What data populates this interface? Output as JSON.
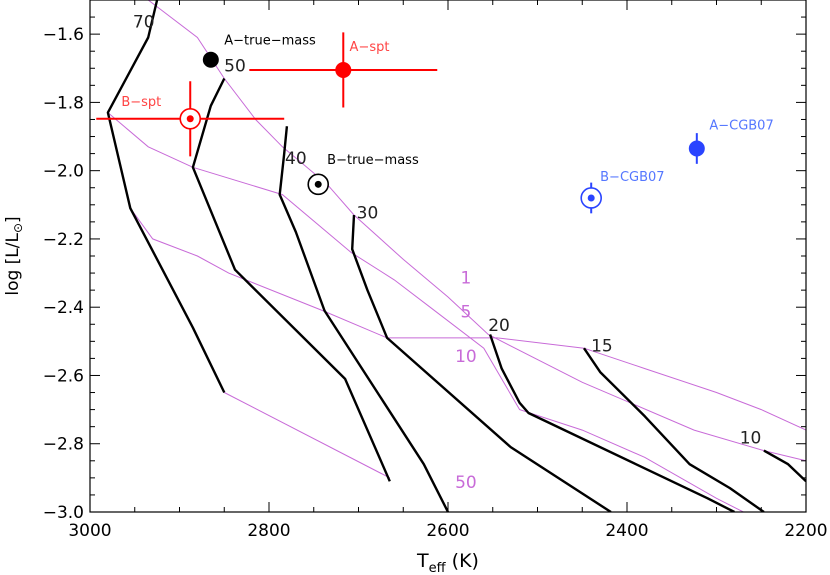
{
  "chart_data": {
    "type": "line",
    "xlabel": "T",
    "xlabel_sub": "eff",
    "xlabel_unit": "(K)",
    "ylabel": "log [L/L",
    "ylabel_sun": "⊙",
    "ylabel_close": "]",
    "xlim": [
      3000,
      2200
    ],
    "ylim": [
      -3.0,
      -1.5
    ],
    "x_ticks": [
      3000,
      2800,
      2600,
      2400,
      2200
    ],
    "x_tick_labels": [
      "3000",
      "2800",
      "2600",
      "2400",
      "2200"
    ],
    "y_ticks": [
      -1.6,
      -1.8,
      -2.0,
      -2.2,
      -2.4,
      -2.6,
      -2.8,
      -3.0
    ],
    "y_tick_labels": [
      "−1.6",
      "−1.8",
      "−2.0",
      "−2.2",
      "−2.4",
      "−2.6",
      "−2.8",
      "−3.0"
    ],
    "colors": {
      "track": "#000000",
      "isochrone": "#c86bd8",
      "red": "#ff0000",
      "blue": "#2a44ff",
      "label_red": "#ff4444",
      "label_blue": "#5577ff"
    },
    "mass_tracks": [
      {
        "name": "70",
        "points": [
          [
            2925,
            -1.5
          ],
          [
            2935,
            -1.61
          ],
          [
            2980,
            -1.83
          ],
          [
            2955,
            -2.11
          ],
          [
            2885,
            -2.46
          ],
          [
            2850,
            -2.65
          ]
        ],
        "label": "70",
        "label_at": [
          2940,
          -1.58
        ]
      },
      {
        "name": "50",
        "points": [
          [
            2850,
            -1.73
          ],
          [
            2865,
            -1.81
          ],
          [
            2885,
            -1.99
          ],
          [
            2838,
            -2.29
          ],
          [
            2715,
            -2.61
          ],
          [
            2665,
            -2.91
          ]
        ],
        "label": "50",
        "label_at": [
          2838,
          -1.71
        ]
      },
      {
        "name": "40",
        "points": [
          [
            2780,
            -1.87
          ],
          [
            2783,
            -1.95
          ],
          [
            2788,
            -2.07
          ],
          [
            2770,
            -2.18
          ],
          [
            2738,
            -2.41
          ],
          [
            2627,
            -2.86
          ],
          [
            2600,
            -3.0
          ]
        ],
        "label": "40",
        "label_at": [
          2770,
          -1.98
        ]
      },
      {
        "name": "30",
        "points": [
          [
            2705,
            -2.13
          ],
          [
            2707,
            -2.23
          ],
          [
            2690,
            -2.35
          ],
          [
            2668,
            -2.49
          ],
          [
            2530,
            -2.81
          ],
          [
            2418,
            -3.0
          ]
        ],
        "label": "30",
        "label_at": [
          2690,
          -2.14
        ]
      },
      {
        "name": "20",
        "points": [
          [
            2553,
            -2.48
          ],
          [
            2540,
            -2.58
          ],
          [
            2520,
            -2.68
          ],
          [
            2510,
            -2.71
          ],
          [
            2390,
            -2.86
          ],
          [
            2310,
            -2.96
          ],
          [
            2280,
            -3.0
          ]
        ],
        "label": "20",
        "label_at": [
          2543,
          -2.47
        ]
      },
      {
        "name": "15",
        "points": [
          [
            2448,
            -2.52
          ],
          [
            2430,
            -2.59
          ],
          [
            2380,
            -2.72
          ],
          [
            2330,
            -2.86
          ],
          [
            2285,
            -2.93
          ],
          [
            2247,
            -3.0
          ]
        ],
        "label": "15",
        "label_at": [
          2428,
          -2.53
        ]
      },
      {
        "name": "10",
        "points": [
          [
            2247,
            -2.82
          ],
          [
            2220,
            -2.86
          ],
          [
            2200,
            -2.91
          ]
        ],
        "label": "10",
        "label_at": [
          2262,
          -2.8
        ]
      }
    ],
    "isochrones": [
      {
        "name": "1",
        "points": [
          [
            2935,
            -1.5
          ],
          [
            2880,
            -1.61
          ],
          [
            2850,
            -1.73
          ],
          [
            2815,
            -1.85
          ],
          [
            2785,
            -1.93
          ],
          [
            2735,
            -2.04
          ],
          [
            2705,
            -2.13
          ],
          [
            2650,
            -2.26
          ],
          [
            2600,
            -2.37
          ],
          [
            2555,
            -2.48
          ],
          [
            2450,
            -2.62
          ],
          [
            2325,
            -2.76
          ],
          [
            2247,
            -2.82
          ],
          [
            2200,
            -2.85
          ]
        ],
        "label": "1",
        "label_at": [
          2580,
          -2.33
        ]
      },
      {
        "name": "5",
        "points": [
          [
            2980,
            -1.83
          ],
          [
            2935,
            -1.93
          ],
          [
            2885,
            -1.99
          ],
          [
            2785,
            -2.07
          ],
          [
            2708,
            -2.24
          ],
          [
            2660,
            -2.32
          ],
          [
            2620,
            -2.4
          ],
          [
            2560,
            -2.52
          ],
          [
            2520,
            -2.7
          ],
          [
            2450,
            -2.76
          ],
          [
            2380,
            -2.84
          ],
          [
            2300,
            -2.96
          ],
          [
            2270,
            -3.0
          ]
        ],
        "label": "5",
        "label_at": [
          2580,
          -2.43
        ]
      },
      {
        "name": "10",
        "points": [
          [
            2955,
            -2.11
          ],
          [
            2930,
            -2.2
          ],
          [
            2880,
            -2.25
          ],
          [
            2845,
            -2.3
          ],
          [
            2740,
            -2.41
          ],
          [
            2668,
            -2.49
          ],
          [
            2545,
            -2.49
          ],
          [
            2448,
            -2.52
          ],
          [
            2380,
            -2.58
          ],
          [
            2300,
            -2.65
          ],
          [
            2250,
            -2.7
          ],
          [
            2200,
            -2.76
          ]
        ],
        "label": "10",
        "label_at": [
          2580,
          -2.56
        ]
      },
      {
        "name": "50",
        "points": [
          [
            2850,
            -2.65
          ],
          [
            2665,
            -2.9
          ]
        ],
        "label": "50",
        "label_at": [
          2580,
          -2.93
        ]
      }
    ],
    "points": [
      {
        "name": "A-true-mass",
        "label": "A−true−mass",
        "x": 2865,
        "y": -1.675,
        "style": "filled",
        "color": "#000000",
        "label_at": [
          2850,
          -1.63
        ],
        "label_color": "#000000"
      },
      {
        "name": "A-spt",
        "label": "A−spt",
        "x": 2717,
        "y": -1.705,
        "xerr": [
          105,
          105
        ],
        "yerr": [
          0.11,
          0.11
        ],
        "style": "filled",
        "color": "#ff0000",
        "label_at": [
          2710,
          -1.65
        ],
        "label_color": "#ff4444"
      },
      {
        "name": "B-spt",
        "label": "B−spt",
        "x": 2888,
        "y": -1.848,
        "xerr": [
          105,
          105
        ],
        "yerr": [
          0.11,
          0.11
        ],
        "style": "ring",
        "color": "#ff0000",
        "label_at": [
          2965,
          -1.81
        ],
        "label_color": "#ff4444"
      },
      {
        "name": "B-true-mass",
        "label": "B−true−mass",
        "x": 2745,
        "y": -2.04,
        "style": "ring",
        "color": "#000000",
        "label_at": [
          2735,
          -1.98
        ],
        "label_color": "#000000"
      },
      {
        "name": "A-CGB07",
        "label": "A−CGB07",
        "x": 2322,
        "y": -1.935,
        "yerr": [
          0.045,
          0.045
        ],
        "style": "filled",
        "color": "#2a44ff",
        "label_at": [
          2308,
          -1.88
        ],
        "label_color": "#5577ff"
      },
      {
        "name": "B-CGB07",
        "label": "B−CGB07",
        "x": 2440,
        "y": -2.08,
        "yerr": [
          0.045,
          0.045
        ],
        "style": "ring",
        "color": "#2a44ff",
        "label_at": [
          2430,
          -2.03
        ],
        "label_color": "#5577ff"
      }
    ]
  }
}
